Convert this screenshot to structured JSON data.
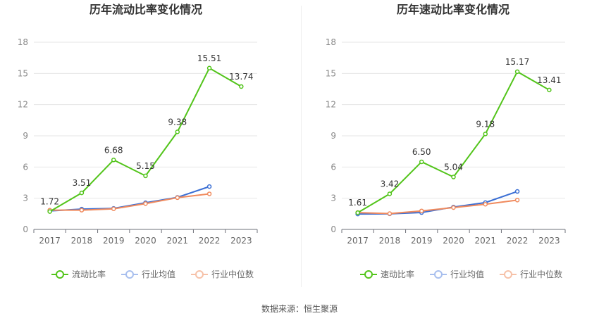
{
  "source_note": "数据来源：恒生聚源",
  "chart_data": [
    {
      "type": "line",
      "title": "历年流动比率变化情况",
      "categories": [
        "2017",
        "2018",
        "2019",
        "2020",
        "2021",
        "2022",
        "2023"
      ],
      "ylim": [
        0,
        18
      ],
      "yticks": [
        0,
        3,
        6,
        9,
        12,
        15,
        18
      ],
      "grid": true,
      "legend_position": "bottom",
      "series": [
        {
          "name": "流动比率",
          "color": "#52c41a",
          "labeled": true,
          "values": [
            1.72,
            3.51,
            6.68,
            5.15,
            9.38,
            15.51,
            13.74
          ],
          "labels": [
            "1.72",
            "3.51",
            "6.68",
            "5.15",
            "9.38",
            "15.51",
            "13.74"
          ]
        },
        {
          "name": "行业均值",
          "color": "#3b6fd4",
          "labeled": false,
          "values": [
            1.78,
            1.95,
            2.02,
            2.56,
            3.08,
            4.12,
            null
          ]
        },
        {
          "name": "行业中位数",
          "color": "#f08a5d",
          "labeled": false,
          "values": [
            1.85,
            1.85,
            1.98,
            2.48,
            3.05,
            3.42,
            null
          ]
        }
      ]
    },
    {
      "type": "line",
      "title": "历年速动比率变化情况",
      "categories": [
        "2017",
        "2018",
        "2019",
        "2020",
        "2021",
        "2022",
        "2023"
      ],
      "ylim": [
        0,
        18
      ],
      "yticks": [
        0,
        3,
        6,
        9,
        12,
        15,
        18
      ],
      "grid": true,
      "legend_position": "bottom",
      "series": [
        {
          "name": "速动比率",
          "color": "#52c41a",
          "labeled": true,
          "values": [
            1.61,
            3.42,
            6.5,
            5.04,
            9.18,
            15.17,
            13.41
          ],
          "labels": [
            "1.61",
            "3.42",
            "6.50",
            "5.04",
            "9.18",
            "15.17",
            "13.41"
          ]
        },
        {
          "name": "行业均值",
          "color": "#3b6fd4",
          "labeled": false,
          "values": [
            1.48,
            1.5,
            1.62,
            2.15,
            2.58,
            3.65,
            null
          ]
        },
        {
          "name": "行业中位数",
          "color": "#f08a5d",
          "labeled": false,
          "values": [
            1.62,
            1.52,
            1.78,
            2.1,
            2.42,
            2.82,
            null
          ]
        }
      ]
    }
  ]
}
